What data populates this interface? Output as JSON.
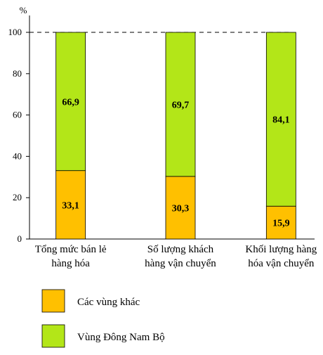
{
  "chart_data": {
    "type": "bar",
    "stacked": true,
    "percent_stacked": true,
    "y_unit": "%",
    "ylim": [
      0,
      100
    ],
    "yticks": [
      0,
      20,
      40,
      60,
      80,
      100
    ],
    "categories": [
      "Tổng mức bán lẻ hàng hóa",
      "Số lượng khách hàng vận chuyển",
      "Khối lượng hàng hóa vận chuyển"
    ],
    "category_lines": [
      [
        "Tổng mức bán lẻ",
        "hàng hóa"
      ],
      [
        "Số lượng khách",
        "hàng vận chuyển"
      ],
      [
        "Khối lượng hàng",
        "hóa vận chuyển"
      ]
    ],
    "series": [
      {
        "name": "Các vùng khác",
        "values": [
          33.1,
          30.3,
          15.9
        ],
        "labels": [
          "33,1",
          "30,3",
          "15,9"
        ],
        "color": "#FFC000"
      },
      {
        "name": "Vùng Đông Nam Bộ",
        "values": [
          66.9,
          69.7,
          84.1
        ],
        "labels": [
          "66,9",
          "69,7",
          "84,1"
        ],
        "color": "#B3E618"
      }
    ],
    "legend_position": "bottom-left",
    "grid": false,
    "reference_line": 100
  }
}
